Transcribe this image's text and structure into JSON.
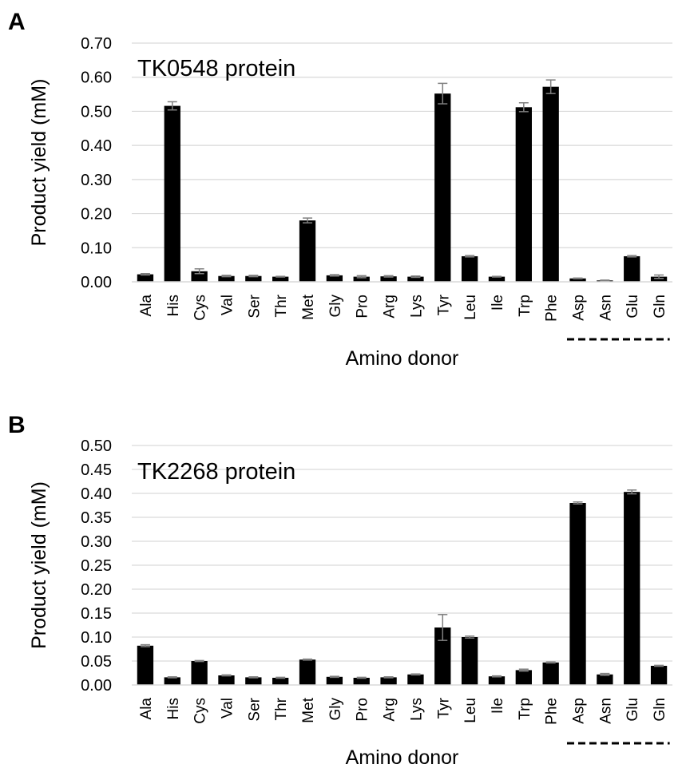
{
  "colors": {
    "bar": "#000000",
    "grid": "#d9d9d9",
    "error_bar": "#7f7f7f",
    "background": "#ffffff"
  },
  "chart_data": [
    {
      "type": "bar",
      "panel_label": "A",
      "annotation": "TK0548 protein",
      "title": "",
      "xlabel": "Amino donor",
      "ylabel": "Product yield (mM)",
      "ylim": [
        0,
        0.7
      ],
      "yticks": [
        "0.00",
        "0.10",
        "0.20",
        "0.30",
        "0.40",
        "0.50",
        "0.60",
        "0.70"
      ],
      "grid": true,
      "categories": [
        "Ala",
        "His",
        "Cys",
        "Val",
        "Ser",
        "Thr",
        "Met",
        "Gly",
        "Pro",
        "Arg",
        "Lys",
        "Tyr",
        "Leu",
        "Ile",
        "Trp",
        "Phe",
        "Asp",
        "Asn",
        "Glu",
        "Gln"
      ],
      "values": [
        0.022,
        0.516,
        0.031,
        0.017,
        0.017,
        0.015,
        0.18,
        0.019,
        0.015,
        0.016,
        0.015,
        0.552,
        0.075,
        0.015,
        0.512,
        0.572,
        0.01,
        0.004,
        0.075,
        0.015
      ],
      "errors": [
        0.002,
        0.012,
        0.007,
        0.002,
        0.002,
        0.001,
        0.007,
        0.002,
        0.003,
        0.002,
        0.002,
        0.03,
        0.002,
        0.001,
        0.013,
        0.02,
        0.001,
        0.001,
        0.002,
        0.005
      ],
      "dashed_group": [
        "Asp",
        "Asn",
        "Glu",
        "Gln"
      ]
    },
    {
      "type": "bar",
      "panel_label": "B",
      "annotation": "TK2268 protein",
      "title": "",
      "xlabel": "Amino donor",
      "ylabel": "Product yield (mM)",
      "ylim": [
        0,
        0.5
      ],
      "yticks": [
        "0.00",
        "0.05",
        "0.10",
        "0.15",
        "0.20",
        "0.25",
        "0.30",
        "0.35",
        "0.40",
        "0.45",
        "0.50"
      ],
      "grid": true,
      "categories": [
        "Ala",
        "His",
        "Cys",
        "Val",
        "Ser",
        "Thr",
        "Met",
        "Gly",
        "Pro",
        "Arg",
        "Lys",
        "Tyr",
        "Leu",
        "Ile",
        "Trp",
        "Phe",
        "Asp",
        "Asn",
        "Glu",
        "Gln"
      ],
      "values": [
        0.082,
        0.016,
        0.05,
        0.02,
        0.016,
        0.015,
        0.053,
        0.017,
        0.015,
        0.016,
        0.022,
        0.12,
        0.1,
        0.018,
        0.031,
        0.047,
        0.38,
        0.022,
        0.403,
        0.04
      ],
      "errors": [
        0.002,
        0.001,
        0.001,
        0.001,
        0.001,
        0.001,
        0.001,
        0.001,
        0.001,
        0.001,
        0.001,
        0.027,
        0.002,
        0.001,
        0.002,
        0.001,
        0.002,
        0.002,
        0.004,
        0.001
      ],
      "dashed_group": [
        "Asp",
        "Asn",
        "Glu",
        "Gln"
      ]
    }
  ]
}
